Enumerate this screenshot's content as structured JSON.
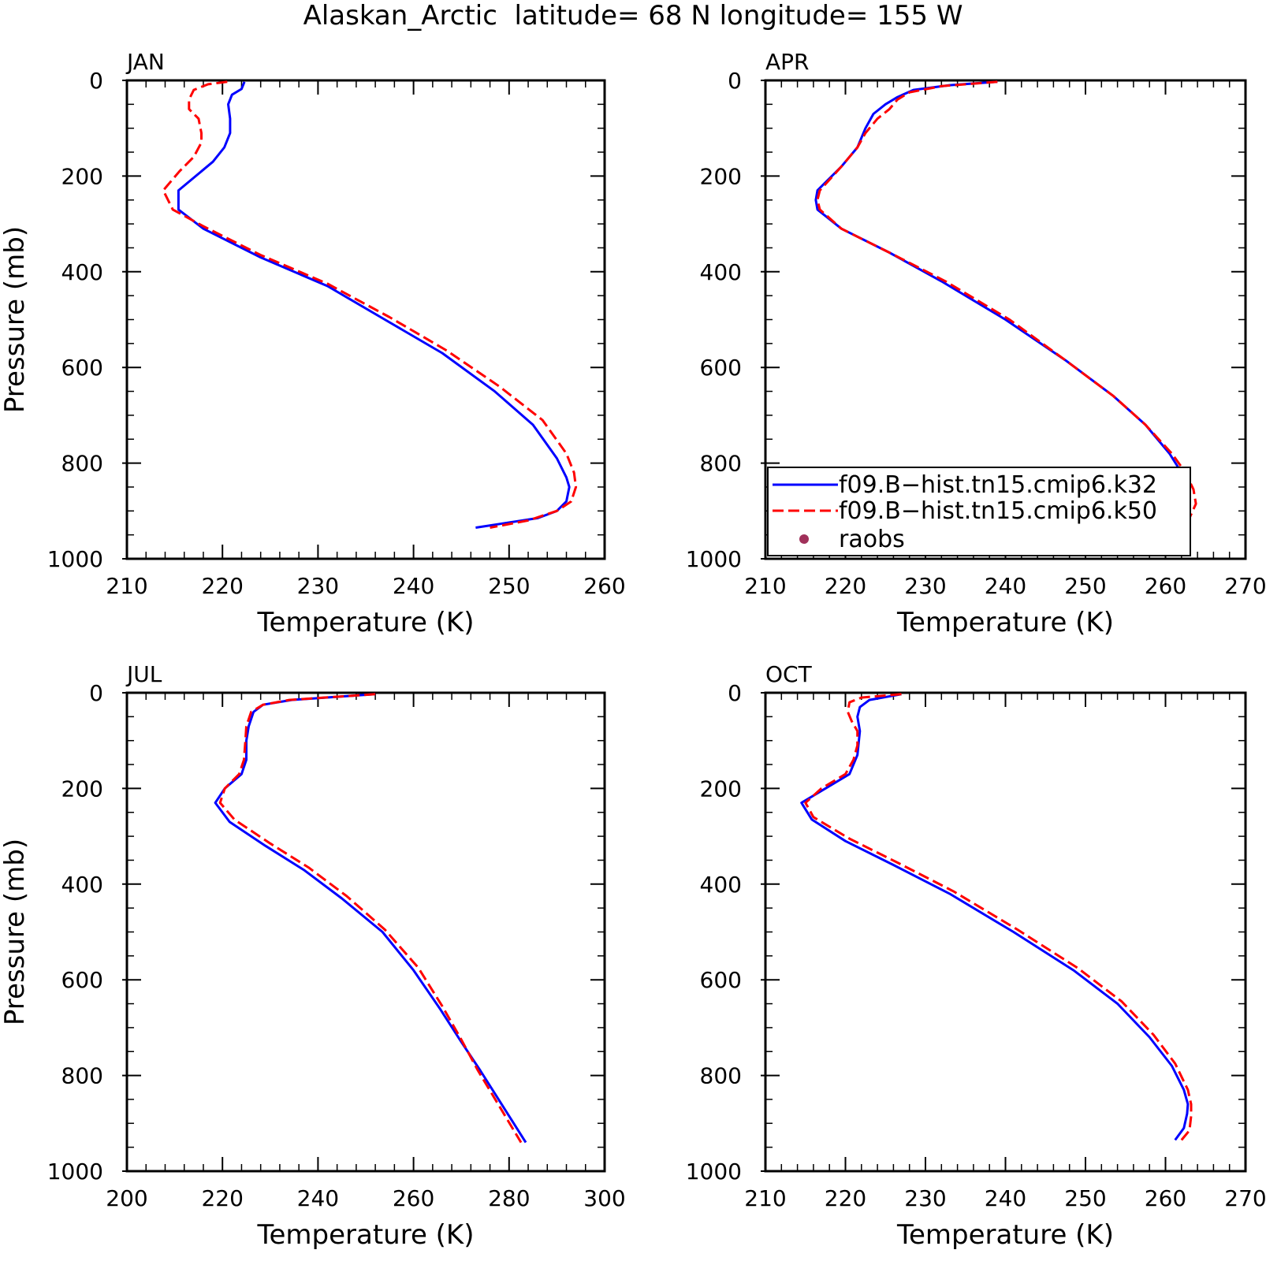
{
  "title": "Alaskan_Arctic  latitude= 68 N longitude= 155 W",
  "colors": {
    "k32": "#0000ff",
    "k50": "#ff0000",
    "raobs": "#a0305a"
  },
  "legend": {
    "placement": "panel-2 bottom-right",
    "entries": [
      {
        "label": "f09.B−hist.tn15.cmip6.k32",
        "style": "solid",
        "color": "#0000ff"
      },
      {
        "label": "f09.B−hist.tn15.cmip6.k50",
        "style": "dashed",
        "color": "#ff0000"
      },
      {
        "label": "raobs",
        "style": "dot",
        "color": "#a0305a"
      }
    ]
  },
  "chart_data": [
    {
      "type": "line",
      "title": "JAN",
      "xlabel": "Temperature (K)",
      "ylabel": "Pressure (mb)",
      "xlim": [
        210,
        260
      ],
      "ylim": [
        0,
        1000
      ],
      "y_inverted": true,
      "xticks": [
        210,
        220,
        230,
        240,
        250,
        260
      ],
      "yticks": [
        0,
        200,
        400,
        600,
        800,
        1000
      ],
      "series": [
        {
          "name": "f09.B−hist.tn15.cmip6.k32",
          "x": [
            222.3,
            222.0,
            221.0,
            220.6,
            220.8,
            220.8,
            220.2,
            219.0,
            215.4,
            215.4,
            218.0,
            224.0,
            231.0,
            237.0,
            243.0,
            248.5,
            252.5,
            255.0,
            256.0,
            256.3,
            256.0,
            255.0,
            253.0,
            246.5
          ],
          "y": [
            3,
            18,
            30,
            50,
            80,
            110,
            140,
            170,
            230,
            270,
            310,
            370,
            430,
            500,
            570,
            650,
            720,
            790,
            830,
            850,
            880,
            900,
            915,
            935
          ]
        },
        {
          "name": "f09.B−hist.tn15.cmip6.k50",
          "x": [
            220.5,
            218.5,
            217.0,
            216.5,
            216.5,
            217.5,
            217.8,
            217.8,
            217.0,
            215.5,
            213.8,
            214.8,
            218.0,
            224.0,
            231.0,
            237.5,
            243.5,
            249.0,
            253.5,
            256.0,
            256.8,
            257.0,
            256.5,
            255.0,
            252.0,
            248.0
          ],
          "y": [
            3,
            8,
            20,
            40,
            60,
            80,
            110,
            130,
            160,
            190,
            230,
            270,
            305,
            365,
            425,
            495,
            565,
            640,
            710,
            780,
            820,
            850,
            880,
            900,
            920,
            935
          ]
        }
      ]
    },
    {
      "type": "line",
      "title": "APR",
      "xlabel": "Temperature (K)",
      "ylabel": "",
      "xlim": [
        210,
        270
      ],
      "ylim": [
        0,
        1000
      ],
      "y_inverted": true,
      "xticks": [
        210,
        220,
        230,
        240,
        250,
        260,
        270
      ],
      "yticks": [
        0,
        200,
        400,
        600,
        800,
        1000
      ],
      "series": [
        {
          "name": "f09.B−hist.tn15.cmip6.k32",
          "x": [
            239.0,
            233.0,
            228.5,
            226.5,
            225.0,
            223.5,
            222.5,
            221.5,
            219.5,
            216.5,
            216.3,
            216.5,
            219.5,
            225.5,
            232.0,
            240.0,
            247.5,
            253.5,
            257.5,
            260.5,
            262.0,
            262.8,
            262.8,
            262.0,
            260.0
          ],
          "y": [
            3,
            10,
            20,
            35,
            50,
            70,
            100,
            140,
            180,
            230,
            250,
            270,
            310,
            360,
            420,
            500,
            585,
            660,
            720,
            780,
            820,
            850,
            880,
            920,
            945
          ]
        },
        {
          "name": "f09.B−hist.tn15.cmip6.k50",
          "x": [
            239.0,
            232.0,
            228.0,
            226.5,
            225.5,
            224.0,
            222.5,
            221.5,
            219.5,
            216.8,
            216.5,
            216.8,
            219.5,
            225.5,
            232.5,
            240.5,
            247.5,
            253.5,
            257.5,
            260.8,
            262.5,
            263.5,
            263.8,
            263.0,
            261.0
          ],
          "y": [
            3,
            12,
            25,
            40,
            60,
            80,
            110,
            140,
            180,
            230,
            250,
            270,
            310,
            360,
            420,
            500,
            585,
            660,
            720,
            780,
            820,
            855,
            885,
            915,
            940
          ]
        }
      ]
    },
    {
      "type": "line",
      "title": "JUL",
      "xlabel": "Temperature (K)",
      "ylabel": "Pressure (mb)",
      "xlim": [
        200,
        300
      ],
      "ylim": [
        0,
        1000
      ],
      "y_inverted": true,
      "xticks": [
        200,
        220,
        240,
        260,
        280,
        300
      ],
      "yticks": [
        0,
        200,
        400,
        600,
        800,
        1000
      ],
      "series": [
        {
          "name": "f09.B−hist.tn15.cmip6.k32",
          "x": [
            252.0,
            234.5,
            228.5,
            226.5,
            225.5,
            225.0,
            225.0,
            224.0,
            220.5,
            218.5,
            221.5,
            229.0,
            237.0,
            245.0,
            253.5,
            260.0,
            265.5,
            270.0,
            274.0,
            283.5
          ],
          "y": [
            3,
            15,
            25,
            40,
            70,
            100,
            140,
            170,
            200,
            230,
            270,
            320,
            370,
            430,
            500,
            580,
            660,
            730,
            790,
            940
          ]
        },
        {
          "name": "f09.B−hist.tn15.cmip6.k50",
          "x": [
            252.0,
            234.0,
            228.5,
            226.0,
            225.0,
            224.8,
            224.5,
            223.5,
            220.5,
            219.5,
            222.5,
            230.0,
            238.0,
            246.0,
            254.0,
            261.0,
            266.0,
            270.0,
            273.5,
            282.5
          ],
          "y": [
            3,
            15,
            25,
            40,
            70,
            100,
            140,
            170,
            200,
            230,
            265,
            315,
            365,
            425,
            495,
            575,
            655,
            725,
            790,
            940
          ]
        }
      ]
    },
    {
      "type": "line",
      "title": "OCT",
      "xlabel": "Temperature (K)",
      "ylabel": "",
      "xlim": [
        210,
        270
      ],
      "ylim": [
        0,
        1000
      ],
      "y_inverted": true,
      "xticks": [
        210,
        220,
        230,
        240,
        250,
        260,
        270
      ],
      "yticks": [
        0,
        200,
        400,
        600,
        800,
        1000
      ],
      "series": [
        {
          "name": "f09.B−hist.tn15.cmip6.k32",
          "x": [
            227.0,
            223.0,
            221.8,
            221.5,
            221.8,
            221.5,
            220.5,
            217.5,
            214.5,
            215.8,
            220.0,
            226.0,
            233.0,
            241.0,
            248.5,
            254.0,
            258.0,
            260.8,
            262.3,
            262.8,
            262.7,
            262.3,
            261.2
          ],
          "y": [
            3,
            15,
            30,
            50,
            80,
            130,
            170,
            200,
            230,
            265,
            310,
            360,
            420,
            500,
            580,
            650,
            720,
            780,
            830,
            860,
            880,
            910,
            935
          ]
        },
        {
          "name": "f09.B−hist.tn15.cmip6.k50",
          "x": [
            227.0,
            222.0,
            220.5,
            220.3,
            220.8,
            221.5,
            221.5,
            221.0,
            220.0,
            217.0,
            215.0,
            216.0,
            220.5,
            226.5,
            233.5,
            241.5,
            249.0,
            254.5,
            258.5,
            261.2,
            262.8,
            263.2,
            263.2,
            263.0,
            262.0
          ],
          "y": [
            3,
            10,
            20,
            40,
            60,
            80,
            110,
            140,
            170,
            200,
            230,
            260,
            305,
            355,
            415,
            495,
            575,
            645,
            715,
            775,
            830,
            860,
            885,
            915,
            935
          ]
        }
      ]
    }
  ]
}
